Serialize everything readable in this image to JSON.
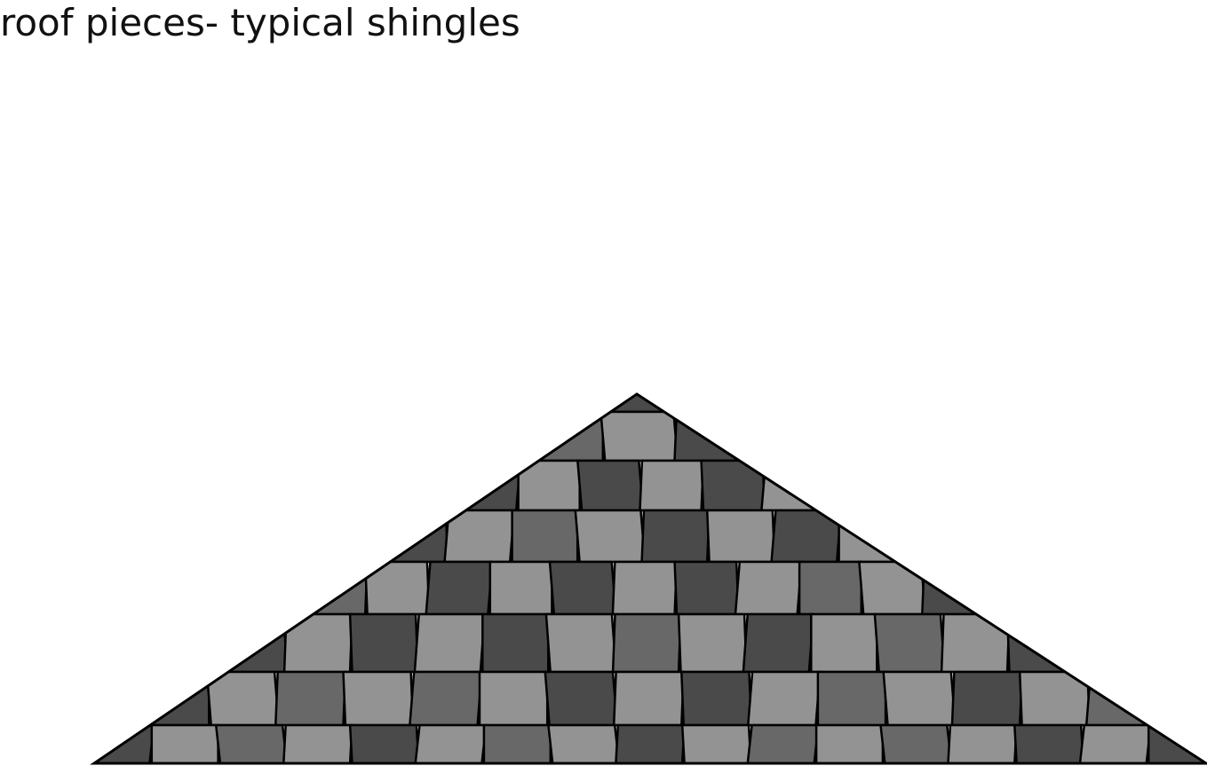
{
  "title": "roof pieces- typical shingles",
  "colors": {
    "dark": "#4a4a4a",
    "medium": "#686868",
    "light": "#939393",
    "outline": "#000000",
    "background": "#ffffff"
  },
  "roof": {
    "rows": [
      [
        "dark"
      ],
      [
        "medium",
        "light",
        "dark"
      ],
      [
        "dark",
        "light",
        "dark",
        "light",
        "dark",
        "light"
      ],
      [
        "dark",
        "light",
        "medium",
        "light",
        "dark",
        "light",
        "dark",
        "light"
      ],
      [
        "medium",
        "light",
        "dark",
        "light",
        "dark",
        "light",
        "dark",
        "light",
        "medium",
        "light",
        "dark"
      ],
      [
        "dark",
        "light",
        "dark",
        "light",
        "dark",
        "light",
        "medium",
        "light",
        "dark",
        "light",
        "medium",
        "light",
        "dark"
      ],
      [
        "dark",
        "light",
        "medium",
        "light",
        "medium",
        "light",
        "dark",
        "light",
        "dark",
        "light",
        "medium",
        "light",
        "dark",
        "light",
        "medium"
      ],
      [
        "dark",
        "light",
        "medium",
        "light",
        "dark",
        "light",
        "medium",
        "light",
        "dark",
        "light",
        "medium",
        "light",
        "medium",
        "light",
        "dark",
        "light",
        "dark"
      ]
    ]
  }
}
